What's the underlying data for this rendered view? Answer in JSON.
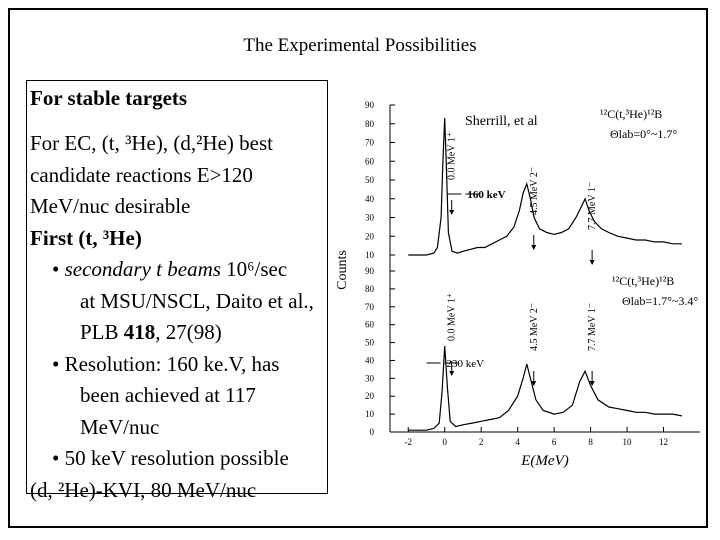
{
  "slide": {
    "title": "The Experimental Possibilities",
    "heading": "For stable targets",
    "intro_line1": "For EC, (t, ³He), (d,²He) best",
    "intro_line2": "candidate reactions E>120",
    "intro_line3": "MeV/nuc desirable",
    "first_label": "First (t, ³He)",
    "bullets": [
      {
        "line1_em": "secondary  t beams",
        "line1_rest": " 10⁶/sec",
        "line2": "at MSU/NSCL, Daito et al.,",
        "line3": "PLB 418, 27(98)"
      },
      {
        "line1": "Resolution: 160 ke.V, has",
        "line2": "been achieved at 117",
        "line3": "MeV/nuc"
      },
      {
        "line1": "50 keV resolution possible"
      }
    ],
    "last_line": "(d, ²He)-KVI, 80 MeV/nuc"
  },
  "chart_data": {
    "type": "line",
    "title": "",
    "xlabel": "E(MeV)",
    "ylabel": "Counts",
    "xlim": [
      -3,
      14
    ],
    "xticks": [
      -2,
      0,
      2,
      4,
      6,
      8,
      10,
      12
    ],
    "panels": [
      {
        "name": "top",
        "ylim": [
          10,
          90
        ],
        "yticks": [
          10,
          20,
          30,
          40,
          50,
          60,
          70,
          80,
          90
        ],
        "reaction": "¹²C(t,³He)¹²B",
        "angle": "Θlab=0°~1.7°",
        "attribution": "Sherrill, et al",
        "resolution": "160 keV",
        "peaks": [
          {
            "label": "0.0 MeV 1⁺",
            "x": 0.0
          },
          {
            "label": "4.5 MeV 2⁻",
            "x": 4.5
          },
          {
            "label": "7.7 MeV 1⁻",
            "x": 7.7
          }
        ],
        "series": {
          "x": [
            -2.0,
            -1.5,
            -1.0,
            -0.6,
            -0.4,
            -0.2,
            -0.1,
            0.0,
            0.1,
            0.2,
            0.4,
            0.7,
            1.0,
            1.4,
            1.8,
            2.2,
            2.6,
            3.0,
            3.4,
            3.8,
            4.1,
            4.3,
            4.5,
            4.7,
            4.9,
            5.2,
            5.6,
            6.0,
            6.4,
            6.8,
            7.2,
            7.5,
            7.7,
            7.9,
            8.2,
            8.6,
            9.0,
            9.5,
            10.0,
            10.5,
            11.0,
            11.5,
            12.0,
            12.5,
            13.0
          ],
          "y": [
            10,
            10,
            10,
            11,
            14,
            30,
            60,
            83,
            55,
            22,
            12,
            11,
            12,
            13,
            14,
            14,
            16,
            18,
            20,
            25,
            34,
            43,
            48,
            40,
            30,
            24,
            22,
            21,
            22,
            24,
            30,
            36,
            40,
            34,
            28,
            24,
            22,
            20,
            19,
            18,
            18,
            17,
            17,
            16,
            16
          ]
        }
      },
      {
        "name": "bottom",
        "ylim": [
          0,
          90
        ],
        "yticks": [
          0,
          10,
          20,
          30,
          40,
          50,
          60,
          70,
          80,
          90
        ],
        "reaction": "¹²C(t,³He)¹²B",
        "angle": "Θlab=1.7°~3.4°",
        "resolution": "230 keV",
        "peaks": [
          {
            "label": "0.0 MeV 1⁺",
            "x": 0.0
          },
          {
            "label": "4.5 MeV 2⁻",
            "x": 4.5
          },
          {
            "label": "7.7 MeV 1⁻",
            "x": 7.7
          }
        ],
        "series": {
          "x": [
            -2.0,
            -1.5,
            -1.0,
            -0.6,
            -0.3,
            -0.15,
            0.0,
            0.15,
            0.3,
            0.6,
            1.0,
            1.5,
            2.0,
            2.5,
            3.0,
            3.5,
            4.0,
            4.3,
            4.5,
            4.7,
            5.0,
            5.4,
            6.0,
            6.5,
            7.0,
            7.4,
            7.7,
            8.0,
            8.4,
            9.0,
            9.5,
            10.0,
            10.5,
            11.0,
            11.5,
            12.0,
            12.5,
            13.0
          ],
          "y": [
            1,
            1,
            1,
            2,
            5,
            22,
            48,
            25,
            6,
            3,
            4,
            5,
            6,
            7,
            8,
            12,
            20,
            30,
            38,
            30,
            18,
            12,
            10,
            11,
            15,
            28,
            34,
            26,
            18,
            14,
            13,
            12,
            11,
            11,
            10,
            10,
            10,
            9
          ]
        }
      }
    ]
  }
}
